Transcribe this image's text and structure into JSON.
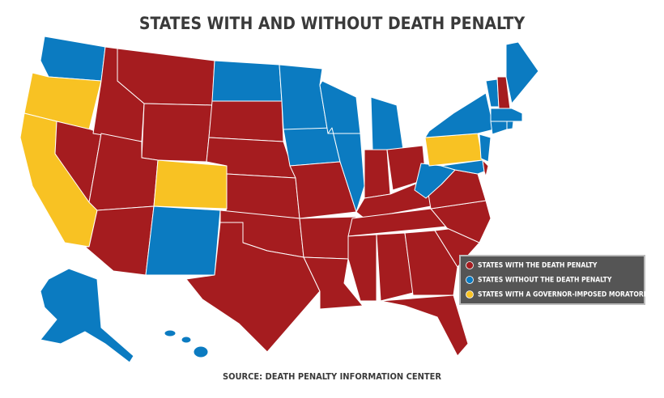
{
  "title": "STATES WITH AND WITHOUT DEATH PENALTY",
  "legend": [
    {
      "label": "STATES WITH THE DEATH PENALTY",
      "color": "#a51c1f"
    },
    {
      "label": "STATES WITHOUT THE DEATH PENALTY",
      "color": "#0b7bc1"
    },
    {
      "label": "STATES WITH A GOVERNOR-IMPOSED MORATORIUM",
      "color": "#f8c223"
    }
  ],
  "source": "SOURCE: DEATH PENALTY INFORMATION CENTER"
}
